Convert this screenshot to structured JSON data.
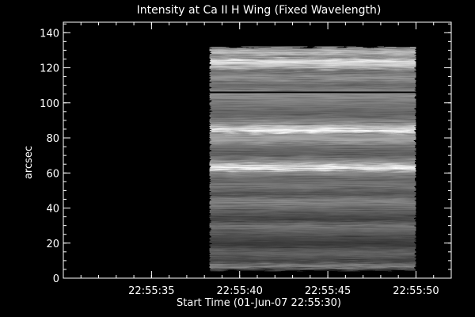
{
  "chart_data": {
    "type": "heatmap",
    "title": "Intensity at Ca II H Wing (Fixed Wavelength)",
    "xlabel": "Start Time (01-Jun-07 22:55:30)",
    "ylabel": "arcsec",
    "xlim": [
      0,
      22
    ],
    "ylim": [
      0,
      146
    ],
    "x_ticks": [
      {
        "value": 5,
        "label": "22:55:35"
      },
      {
        "value": 10,
        "label": "22:55:40"
      },
      {
        "value": 15,
        "label": "22:55:45"
      },
      {
        "value": 20,
        "label": "22:55:50"
      }
    ],
    "x_minor_step": 1,
    "y_ticks": [
      0,
      20,
      40,
      60,
      80,
      100,
      120,
      140
    ],
    "y_minor_step": 5,
    "image_extent": {
      "x": [
        8.3,
        20.0
      ],
      "y": [
        4,
        132
      ]
    },
    "colormap": "grayscale",
    "bright_bands_y": [
      125,
      85,
      67
    ],
    "dark_line_y": 106
  }
}
